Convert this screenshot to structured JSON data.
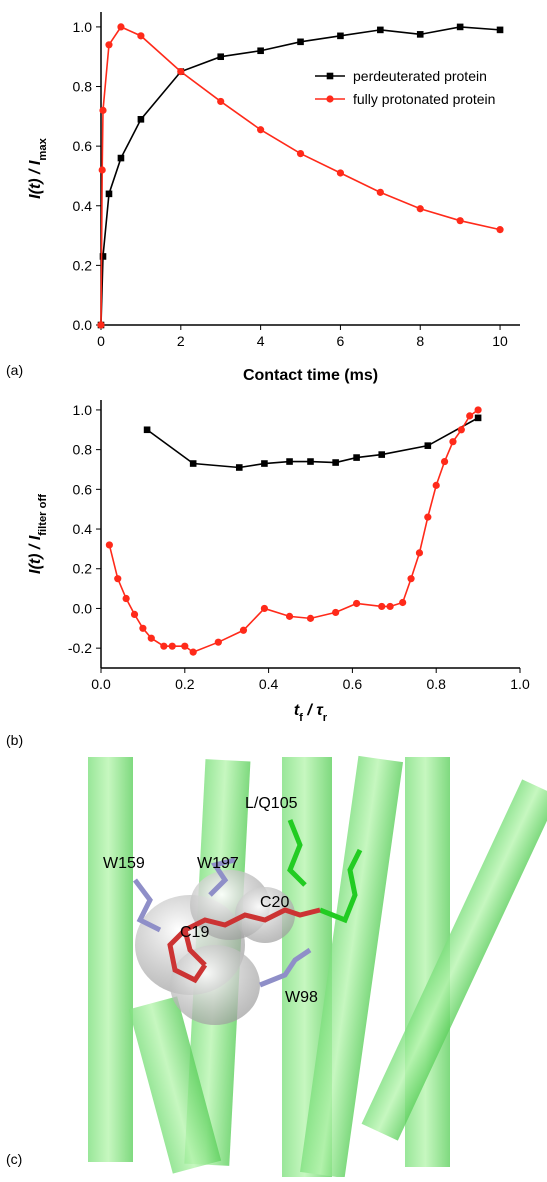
{
  "chart_data": [
    {
      "type": "line",
      "panel_label": "(a)",
      "xlabel": "Contact time (ms)",
      "ylabel_parts": [
        "I(t) / I",
        "max"
      ],
      "xlim": [
        0,
        10.5
      ],
      "ylim": [
        0,
        1.05
      ],
      "xticks": [
        0,
        2,
        4,
        6,
        8,
        10
      ],
      "yticks": [
        {
          "value": 0,
          "label": "0.0"
        },
        0.2,
        0.4,
        0.6,
        0.8,
        {
          "value": 1,
          "label": "1.0"
        }
      ],
      "legend": "upper right",
      "series": [
        {
          "name": "perdeuterated protein",
          "color": "#000000",
          "marker": "square",
          "x": [
            0,
            0.05,
            0.2,
            0.5,
            1,
            2,
            3,
            4,
            5,
            6,
            7,
            8,
            9,
            10
          ],
          "values": [
            0,
            0.23,
            0.44,
            0.56,
            0.69,
            0.85,
            0.9,
            0.92,
            0.95,
            0.97,
            0.99,
            0.975,
            1.0,
            0.99
          ]
        },
        {
          "name": "fully protonated protein",
          "color": "#ff2a1a",
          "marker": "circle",
          "x": [
            0,
            0.03,
            0.05,
            0.2,
            0.5,
            1,
            2,
            3,
            4,
            5,
            6,
            7,
            8,
            9,
            10
          ],
          "values": [
            0,
            0.52,
            0.72,
            0.94,
            1.0,
            0.97,
            0.85,
            0.75,
            0.655,
            0.575,
            0.51,
            0.445,
            0.39,
            0.35,
            0.32
          ]
        }
      ]
    },
    {
      "type": "line",
      "panel_label": "(b)",
      "xlabel_parts": [
        "t",
        "f",
        " / τ",
        "r"
      ],
      "ylabel_parts": [
        "I(t) / I",
        "filter off"
      ],
      "xlim": [
        0,
        1
      ],
      "ylim": [
        -0.3,
        1.05
      ],
      "xticks": [
        {
          "value": 0,
          "label": "0.0"
        },
        0.2,
        0.4,
        0.6,
        0.8,
        {
          "value": 1,
          "label": "1.0"
        }
      ],
      "yticks": [
        -0.2,
        {
          "value": 0,
          "label": "0.0"
        },
        0.2,
        0.4,
        0.6,
        0.8,
        {
          "value": 1,
          "label": "1.0"
        }
      ],
      "series": [
        {
          "color": "#000000",
          "marker": "square",
          "x": [
            0.11,
            0.22,
            0.33,
            0.39,
            0.45,
            0.5,
            0.56,
            0.61,
            0.67,
            0.78,
            0.9
          ],
          "values": [
            0.9,
            0.73,
            0.71,
            0.73,
            0.74,
            0.74,
            0.735,
            0.76,
            0.775,
            0.82,
            0.96
          ]
        },
        {
          "color": "#ff2a1a",
          "marker": "circle",
          "x": [
            0.02,
            0.04,
            0.06,
            0.08,
            0.1,
            0.12,
            0.15,
            0.17,
            0.2,
            0.22,
            0.28,
            0.34,
            0.39,
            0.45,
            0.5,
            0.56,
            0.61,
            0.67,
            0.69,
            0.72,
            0.74,
            0.76,
            0.78,
            0.8,
            0.82,
            0.84,
            0.86,
            0.88,
            0.9
          ],
          "values": [
            0.32,
            0.15,
            0.05,
            -0.03,
            -0.1,
            -0.15,
            -0.19,
            -0.19,
            -0.19,
            -0.22,
            -0.17,
            -0.11,
            0.0,
            -0.04,
            -0.05,
            -0.02,
            0.025,
            0.01,
            0.01,
            0.03,
            0.15,
            0.28,
            0.46,
            0.62,
            0.74,
            0.84,
            0.9,
            0.97,
            1.0
          ]
        }
      ]
    }
  ],
  "structure": {
    "panel_label": "(c)",
    "labels": [
      "L/Q105",
      "W159",
      "W197",
      "C20",
      "C19",
      "W98"
    ]
  }
}
